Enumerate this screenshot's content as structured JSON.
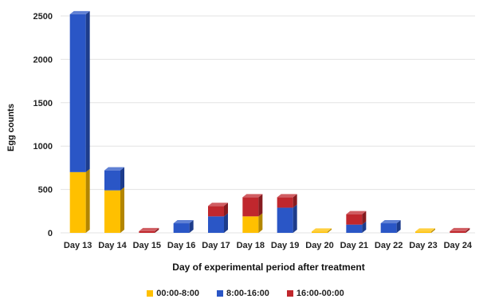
{
  "chart_data": {
    "type": "bar",
    "stacked": true,
    "three_d": true,
    "xlabel": "Day of experimental period after treatment",
    "ylabel": "Egg counts",
    "ylim": [
      0,
      2500
    ],
    "yticks": [
      0,
      500,
      1000,
      1500,
      2000,
      2500
    ],
    "grid": true,
    "legend_position": "bottom",
    "categories": [
      "Day 13",
      "Day 14",
      "Day 15",
      "Day 16",
      "Day 17",
      "Day 18",
      "Day 19",
      "Day 20",
      "Day 21",
      "Day 22",
      "Day 23",
      "Day 24"
    ],
    "series": [
      {
        "name": "00:00-8:00",
        "color": "#ffc000",
        "values": [
          700,
          490,
          0,
          0,
          0,
          190,
          0,
          15,
          0,
          0,
          15,
          0
        ]
      },
      {
        "name": "8:00-16:00",
        "color": "#2a56c6",
        "values": [
          1820,
          230,
          0,
          110,
          190,
          0,
          290,
          0,
          95,
          110,
          0,
          0
        ]
      },
      {
        "name": "16:00-00:00",
        "color": "#c0272d",
        "values": [
          0,
          0,
          20,
          0,
          120,
          220,
          120,
          0,
          120,
          0,
          0,
          20
        ]
      }
    ]
  }
}
